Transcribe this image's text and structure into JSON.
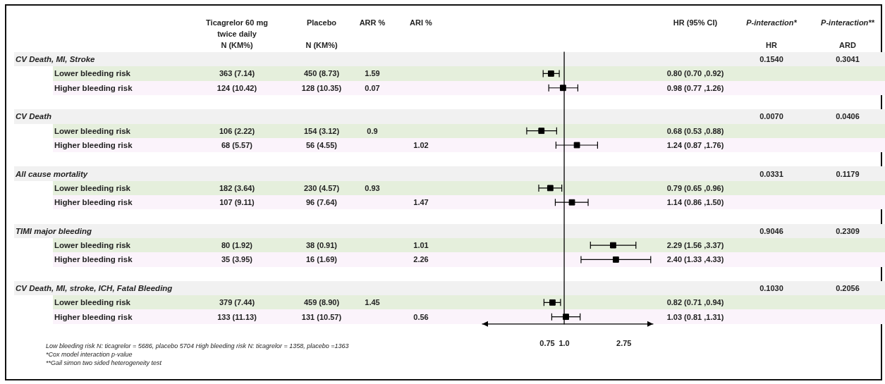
{
  "chart_data": [
    {
      "type": "other",
      "categories": [
        "Ticagrelor 60 mg\ntwice daily\nN (KM%)",
        "Placebo\n\nN (KM%)",
        "ARR %",
        "ARI %",
        "HR (95% CI)",
        "P-interaction*\n\nHR",
        "P-interaction**\n\nARD"
      ],
      "y_categories": [
        "CV Death, MI, Stroke",
        "Lower bleeding risk",
        "Higher bleeding risk",
        null,
        "CV Death",
        "Lower bleeding risk",
        "Higher bleeding risk",
        null,
        "All cause mortality",
        "Lower bleeding risk",
        "Higher bleeding risk",
        null,
        "TIMI major bleeding",
        "Lower bleeding risk",
        "Higher bleeding risk",
        null,
        "CV Death, MI, stroke, ICH, Fatal Bleeding",
        "Lower bleeding risk",
        "Higher bleeding risk"
      ],
      "cell_labels": [
        [
          null,
          null,
          null,
          null,
          null,
          "0.1540",
          "0.3041"
        ],
        [
          "363 (7.14)",
          "450 (8.73)",
          "1.59",
          null,
          "0.80 (0.70 ,0.92)",
          null,
          null
        ],
        [
          "124 (10.42)",
          "128 (10.35)",
          "0.07",
          null,
          "0.98 (0.77 ,1.26)",
          null,
          null
        ],
        [
          null,
          null,
          null,
          null,
          null,
          null,
          null
        ],
        [
          null,
          null,
          null,
          null,
          null,
          "0.0070",
          "0.0406"
        ],
        [
          "106 (2.22)",
          "154 (3.12)",
          "0.9",
          null,
          "0.68 (0.53 ,0.88)",
          null,
          null
        ],
        [
          "68 (5.57)",
          "56 (4.55)",
          null,
          "1.02",
          "1.24 (0.87 ,1.76)",
          null,
          null
        ],
        [
          null,
          null,
          null,
          null,
          null,
          null,
          null
        ],
        [
          null,
          null,
          null,
          null,
          null,
          "0.0331",
          "0.1179"
        ],
        [
          "182 (3.64)",
          "230 (4.57)",
          "0.93",
          null,
          "0.79 (0.65 ,0.96)",
          null,
          null
        ],
        [
          "107 (9.11)",
          "96 (7.64)",
          null,
          "1.47",
          "1.14 (0.86 ,1.50)",
          null,
          null
        ],
        [
          null,
          null,
          null,
          null,
          null,
          null,
          null
        ],
        [
          null,
          null,
          null,
          null,
          null,
          "0.9046",
          "0.2309"
        ],
        [
          "80 (1.92)",
          "38 (0.91)",
          null,
          "1.01",
          "2.29 (1.56 ,3.37)",
          null,
          null
        ],
        [
          "35 (3.95)",
          "16 (1.69)",
          null,
          "2.26",
          "2.40 (1.33 ,4.33)",
          null,
          null
        ],
        [
          null,
          null,
          null,
          null,
          null,
          null,
          null
        ],
        [
          null,
          null,
          null,
          null,
          null,
          "0.1030",
          "0.2056"
        ],
        [
          "379 (7.44)",
          "459 (8.90)",
          "1.45",
          null,
          "0.82 (0.71 ,0.94)",
          null,
          null
        ],
        [
          "133 (11.13)",
          "131 (10.57)",
          null,
          "0.56",
          "1.03 (0.81 ,1.31)",
          null,
          null
        ]
      ],
      "annotations": [
        "Low bleeding risk N: ticagrelor = 5686, placebo 5704 High bleeding risk N: ticagrelor = 1358, placebo =1363",
        "*Cox model interaction p-value",
        "**Gail simon two sided heterogeneity test"
      ]
    },
    {
      "type": "scatter",
      "orientation": "horizontal",
      "categories": [
        null,
        null,
        null,
        null,
        null,
        null,
        null,
        null,
        null,
        null,
        null,
        null,
        null,
        null,
        null,
        null,
        null,
        null,
        null
      ],
      "values": [
        null,
        0.8,
        0.98,
        null,
        null,
        0.68,
        1.24,
        null,
        null,
        0.79,
        1.14,
        null,
        null,
        2.29,
        2.4,
        null,
        null,
        0.82,
        1.03
      ],
      "errors": [
        null,
        [
          0.7,
          0.92
        ],
        [
          0.77,
          1.26
        ],
        null,
        null,
        [
          0.53,
          0.88
        ],
        [
          0.87,
          1.76
        ],
        null,
        null,
        [
          0.65,
          0.96
        ],
        [
          0.86,
          1.5
        ],
        null,
        null,
        [
          1.56,
          3.37
        ],
        [
          1.33,
          4.33
        ],
        null,
        null,
        [
          0.71,
          0.94
        ],
        [
          0.81,
          1.31
        ]
      ],
      "color": "#000000",
      "marker": "square",
      "log": "x",
      "xlim": [
        0.25,
        4.5
      ],
      "xticks": [
        0.75,
        {
          "value": 1,
          "label": "1.0"
        },
        2.75
      ],
      "tick_labels": "x",
      "grid": false,
      "legend": false,
      "ref_lines": [
        {
          "axis": "x",
          "value": 1,
          "color": "#000000"
        }
      ]
    }
  ]
}
